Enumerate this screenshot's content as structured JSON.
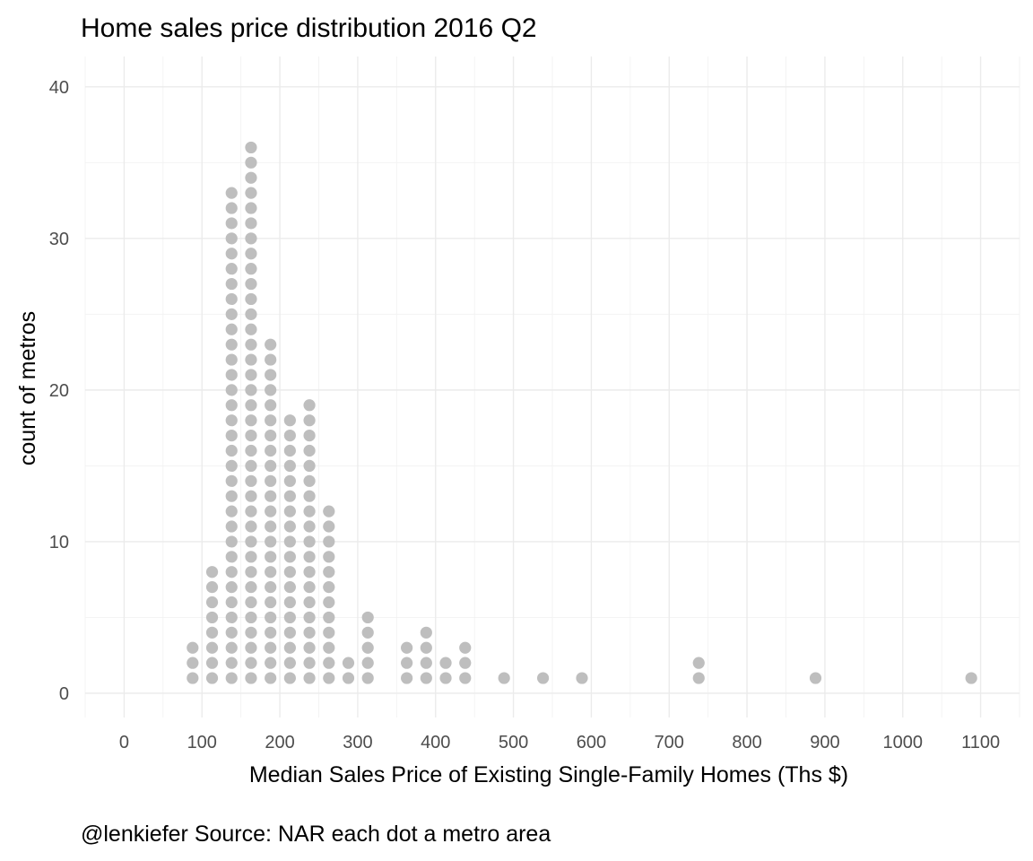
{
  "chart_data": {
    "type": "dotplot",
    "title": "Home sales price distribution 2016 Q2",
    "xlabel": "Median Sales Price of Existing Single-Family Homes (Ths $)",
    "ylabel": "count of metros",
    "caption": "@lenkiefer Source: NAR each dot a metro area",
    "x_ticks": [
      0,
      100,
      200,
      300,
      400,
      500,
      600,
      700,
      800,
      900,
      1000,
      1100
    ],
    "y_ticks": [
      0,
      10,
      20,
      30,
      40
    ],
    "xlim": [
      -50,
      1150
    ],
    "ylim": [
      -1.6,
      42
    ],
    "grid": true,
    "dot_color": "#bebebe",
    "bins": [
      {
        "x": 88,
        "count": 3
      },
      {
        "x": 113,
        "count": 8
      },
      {
        "x": 138,
        "count": 33
      },
      {
        "x": 163,
        "count": 36
      },
      {
        "x": 188,
        "count": 23
      },
      {
        "x": 213,
        "count": 18
      },
      {
        "x": 238,
        "count": 19
      },
      {
        "x": 263,
        "count": 12
      },
      {
        "x": 288,
        "count": 2
      },
      {
        "x": 313,
        "count": 5
      },
      {
        "x": 363,
        "count": 3
      },
      {
        "x": 388,
        "count": 4
      },
      {
        "x": 413,
        "count": 2
      },
      {
        "x": 438,
        "count": 3
      },
      {
        "x": 488,
        "count": 1
      },
      {
        "x": 538,
        "count": 1
      },
      {
        "x": 588,
        "count": 1
      },
      {
        "x": 738,
        "count": 2
      },
      {
        "x": 888,
        "count": 1
      },
      {
        "x": 1088,
        "count": 1
      }
    ]
  }
}
